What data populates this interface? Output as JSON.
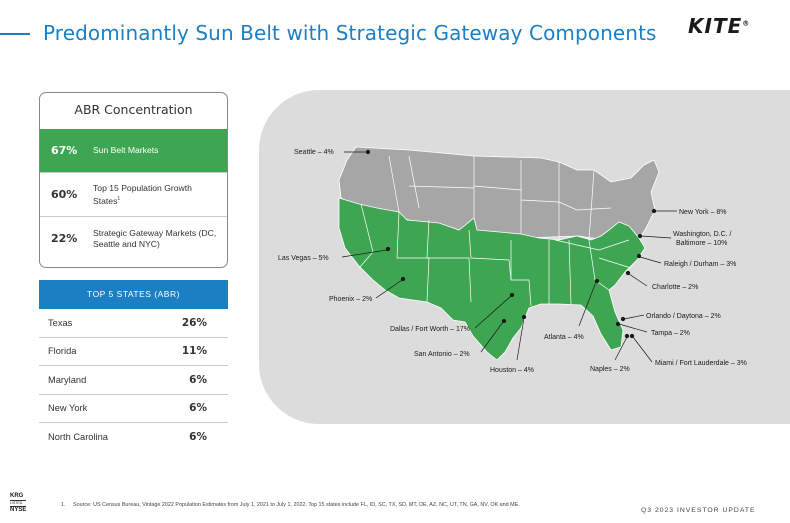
{
  "page": {
    "title": "Predominantly Sun Belt with Strategic Gateway Components",
    "logo": "KITE",
    "logo_mark": "®"
  },
  "abr": {
    "title": "ABR Concentration",
    "rows": [
      {
        "pct": "67%",
        "label": "Sun Belt Markets",
        "sup": ""
      },
      {
        "pct": "60%",
        "label": "Top 15 Population Growth States",
        "sup": "1"
      },
      {
        "pct": "22%",
        "label": "Strategic Gateway Markets (DC, Seattle and NYC)",
        "sup": ""
      }
    ]
  },
  "top_states": {
    "header": "TOP 5 STATES (ABR)",
    "rows": [
      {
        "state": "Texas",
        "value": "26%"
      },
      {
        "state": "Florida",
        "value": "11%"
      },
      {
        "state": "Maryland",
        "value": "6%"
      },
      {
        "state": "New York",
        "value": "6%"
      },
      {
        "state": "North Carolina",
        "value": "6%"
      }
    ]
  },
  "map": {
    "colors": {
      "highlight": "#3ea653",
      "other": "#a6a6a6",
      "panel": "#dcdcdc"
    },
    "markets": [
      {
        "id": "seattle",
        "label": "Seattle – 4%"
      },
      {
        "id": "las-vegas",
        "label": "Las Vegas – 5%"
      },
      {
        "id": "phoenix",
        "label": "Phoenix – 2%"
      },
      {
        "id": "dallas",
        "label": "Dallas / Fort Worth – 17%"
      },
      {
        "id": "san-antonio",
        "label": "San Antonio – 2%"
      },
      {
        "id": "houston",
        "label": "Houston – 4%"
      },
      {
        "id": "atlanta",
        "label": "Atlanta – 4%"
      },
      {
        "id": "naples",
        "label": "Naples – 2%"
      },
      {
        "id": "miami",
        "label": "Miami / Fort Lauderdale – 3%"
      },
      {
        "id": "tampa",
        "label": "Tampa – 2%"
      },
      {
        "id": "orlando",
        "label": "Orlando / Daytona – 2%"
      },
      {
        "id": "charlotte",
        "label": "Charlotte – 2%"
      },
      {
        "id": "raleigh",
        "label": "Raleigh / Durham – 3%"
      },
      {
        "id": "washington",
        "label": "Washington, D.C. /"
      },
      {
        "id": "baltimore",
        "label": "Baltimore – 10%"
      },
      {
        "id": "new-york",
        "label": "New York – 8%"
      }
    ]
  },
  "footer": {
    "footnote_num": "1.",
    "footnote": "Source: US Census Bureau, Vintage 2022 Population Estimates from July 1, 2021 to July 1, 2022. Top 15 states include FL, ID, SC, TX, SD, MT, DE, AZ, NC, UT, TN, GA, NV, OK and ME.",
    "report": "Q3 2023 INVESTOR UPDATE",
    "ticker_top": "KRG",
    "ticker_mid": "LISTED",
    "ticker_bottom": "NYSE"
  }
}
